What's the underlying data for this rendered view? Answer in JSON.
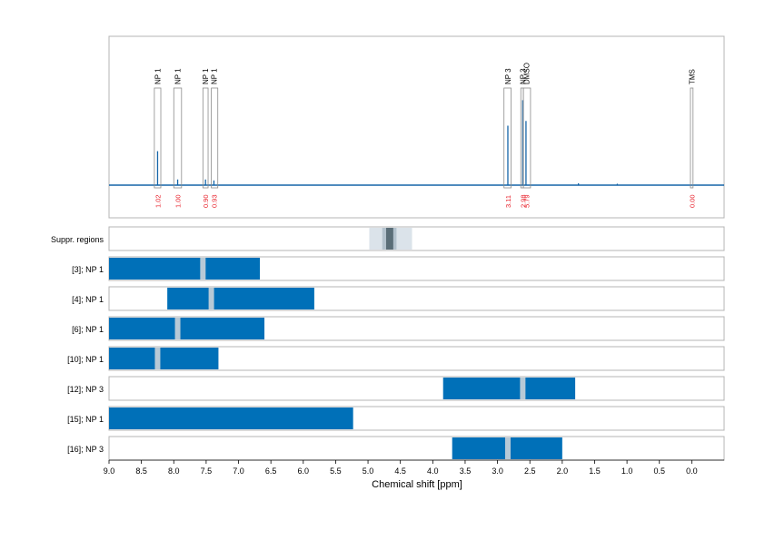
{
  "chart_data": {
    "type": "line",
    "xlabel": "Chemical shift [ppm]",
    "xlim": [
      9.0,
      -0.5
    ],
    "x_ticks": [
      "9.0",
      "8.5",
      "8.0",
      "7.5",
      "7.0",
      "6.5",
      "6.0",
      "5.5",
      "5.0",
      "4.5",
      "4.0",
      "3.5",
      "3.0",
      "2.5",
      "2.0",
      "1.5",
      "1.0",
      "0.5",
      "0.0"
    ],
    "grid": true,
    "colors": {
      "spectrum": "#1565a8",
      "bar": "#0070b8",
      "gap": "#b7c9d6",
      "integral": "#e8202a",
      "frame": "#b4b4b4",
      "suppr_outer": "#dbe3ea",
      "suppr_mid": "#b3c2cd",
      "suppr_inner": "#5a6e78"
    },
    "spectrum": {
      "baseline_ppm_start": 9.0,
      "baseline_ppm_end": -0.5,
      "peaks": [
        {
          "ppm": 8.25,
          "height": 0.36
        },
        {
          "ppm": 7.94,
          "height": 0.06
        },
        {
          "ppm": 7.51,
          "height": 0.06
        },
        {
          "ppm": 7.38,
          "height": 0.05
        },
        {
          "ppm": 2.84,
          "height": 0.63
        },
        {
          "ppm": 2.61,
          "height": 0.9
        },
        {
          "ppm": 2.56,
          "height": 0.68
        },
        {
          "ppm": 1.75,
          "height": 0.02
        },
        {
          "ppm": 1.15,
          "height": 0.015
        }
      ],
      "annotations": [
        {
          "label": "NP 1",
          "ppm": 8.25,
          "integral": "1.02",
          "box": [
            8.3,
            8.2
          ]
        },
        {
          "label": "NP 1",
          "ppm": 7.94,
          "integral": "1.00",
          "box": [
            8.0,
            7.88
          ]
        },
        {
          "label": "NP 1",
          "ppm": 7.51,
          "integral": "0.90",
          "box": [
            7.55,
            7.47
          ]
        },
        {
          "label": "NP 1",
          "ppm": 7.38,
          "integral": "0.93",
          "box": [
            7.42,
            7.32
          ]
        },
        {
          "label": "NP 3",
          "ppm": 2.84,
          "integral": "3.11",
          "box": [
            2.9,
            2.79
          ]
        },
        {
          "label": "NP 3",
          "ppm": 2.61,
          "integral": "2.98",
          "box": [
            2.64,
            2.6
          ]
        },
        {
          "label": "DMSO",
          "ppm": 2.55,
          "integral": "5.79",
          "box": [
            2.6,
            2.49
          ]
        },
        {
          "label": "TMS",
          "ppm": 0.0,
          "integral": "0.00",
          "box": [
            0.02,
            -0.02
          ]
        }
      ]
    },
    "suppressed_region": {
      "label": "Suppr. regions",
      "outer": [
        4.98,
        4.32
      ],
      "mid": [
        4.78,
        4.56
      ],
      "inner": [
        4.72,
        4.61
      ]
    },
    "tracks": [
      {
        "label": "[3]; NP 1",
        "start": 9.0,
        "end": 6.67,
        "gaps": [
          7.55
        ]
      },
      {
        "label": "[4]; NP 1",
        "start": 8.1,
        "end": 5.83,
        "gaps": [
          7.42
        ]
      },
      {
        "label": "[6]; NP 1",
        "start": 9.0,
        "end": 6.6,
        "gaps": [
          7.94
        ]
      },
      {
        "label": "[10]; NP 1",
        "start": 9.0,
        "end": 7.31,
        "gaps": [
          8.25
        ]
      },
      {
        "label": "[12]; NP 3",
        "start": 3.84,
        "end": 1.8,
        "gaps": [
          2.61
        ]
      },
      {
        "label": "[15]; NP 1",
        "start": 9.0,
        "end": 5.23,
        "gaps": []
      },
      {
        "label": "[16]; NP 3",
        "start": 3.7,
        "end": 2.0,
        "gaps": [
          2.84
        ]
      }
    ]
  }
}
